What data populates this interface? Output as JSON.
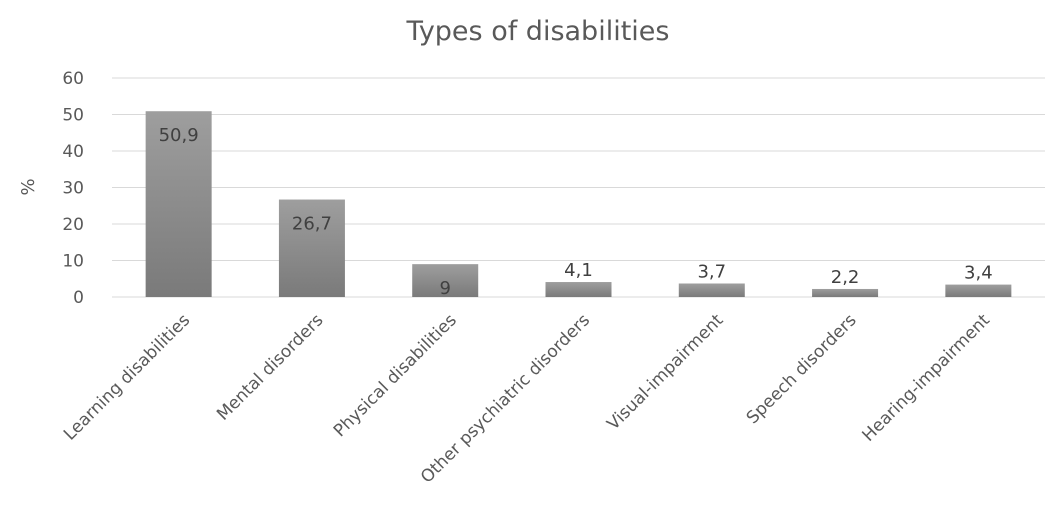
{
  "chart_data": {
    "type": "bar",
    "title": "Types of disabilities",
    "xlabel": "",
    "ylabel": "%",
    "ylim": [
      0,
      60
    ],
    "yticks": [
      0,
      10,
      20,
      30,
      40,
      50,
      60
    ],
    "grid": true,
    "legend": "none",
    "categories": [
      "Learning disabilities",
      "Mental disorders",
      "Physical disabilities",
      "Other psychiatric disorders",
      "Visual-impairment",
      "Speech disorders",
      "Hearing-impairment"
    ],
    "values": [
      50.9,
      26.7,
      9,
      4.1,
      3.7,
      2.2,
      3.4
    ],
    "data_labels": [
      "50,9",
      "26,7",
      "9",
      "4,1",
      "3,7",
      "2,2",
      "3,4"
    ],
    "bar_color_top": "#9e9e9e",
    "bar_color_bottom": "#7a7a7a"
  }
}
